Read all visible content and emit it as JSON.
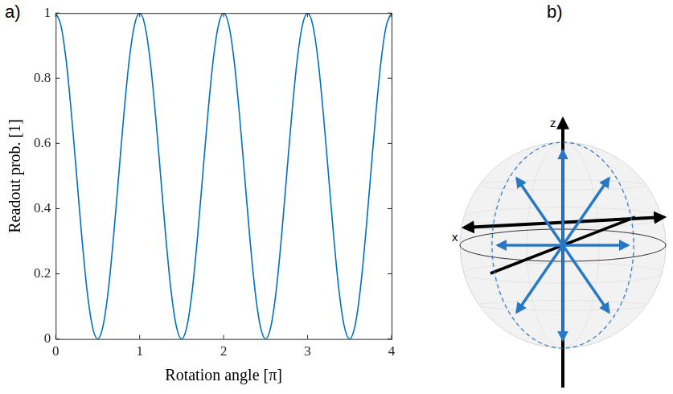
{
  "panel_labels": [
    "a)",
    "b)"
  ],
  "chart_data": {
    "type": "line",
    "x_label": "Rotation angle [π]",
    "y_label": "Readout prob. [1]",
    "x": [
      0,
      0.0625,
      0.125,
      0.1875,
      0.25,
      0.3125,
      0.375,
      0.4375,
      0.5,
      0.5625,
      0.625,
      0.6875,
      0.75,
      0.8125,
      0.875,
      0.9375,
      1,
      1.0625,
      1.125,
      1.1875,
      1.25,
      1.3125,
      1.375,
      1.4375,
      1.5,
      1.5625,
      1.625,
      1.6875,
      1.75,
      1.8125,
      1.875,
      1.9375,
      2,
      2.0625,
      2.125,
      2.1875,
      2.25,
      2.3125,
      2.375,
      2.4375,
      2.5,
      2.5625,
      2.625,
      2.6875,
      2.75,
      2.8125,
      2.875,
      2.9375,
      3,
      3.0625,
      3.125,
      3.1875,
      3.25,
      3.3125,
      3.375,
      3.4375,
      3.5,
      3.5625,
      3.625,
      3.6875,
      3.75,
      3.8125,
      3.875,
      3.9375,
      4
    ],
    "values": [
      1,
      0.962,
      0.854,
      0.691,
      0.5,
      0.309,
      0.146,
      0.038,
      0,
      0.038,
      0.146,
      0.309,
      0.5,
      0.691,
      0.854,
      0.962,
      1,
      0.962,
      0.854,
      0.691,
      0.5,
      0.309,
      0.146,
      0.038,
      0,
      0.038,
      0.146,
      0.309,
      0.5,
      0.691,
      0.854,
      0.962,
      1,
      0.962,
      0.854,
      0.691,
      0.5,
      0.309,
      0.146,
      0.038,
      0,
      0.038,
      0.146,
      0.309,
      0.5,
      0.691,
      0.854,
      0.962,
      1,
      0.962,
      0.854,
      0.691,
      0.5,
      0.309,
      0.146,
      0.038,
      0,
      0.038,
      0.146,
      0.309,
      0.5,
      0.691,
      0.854,
      0.962,
      1
    ],
    "color": "#0072bd",
    "xlim": [
      0,
      4
    ],
    "xticks": [
      0,
      1,
      2,
      3,
      4
    ],
    "ylim": [
      0,
      1
    ],
    "yticks": [
      0,
      0.2,
      0.4,
      0.6,
      0.8,
      1
    ],
    "grid": false
  },
  "diagram": {
    "axis_labels": [
      "z",
      "x"
    ]
  }
}
